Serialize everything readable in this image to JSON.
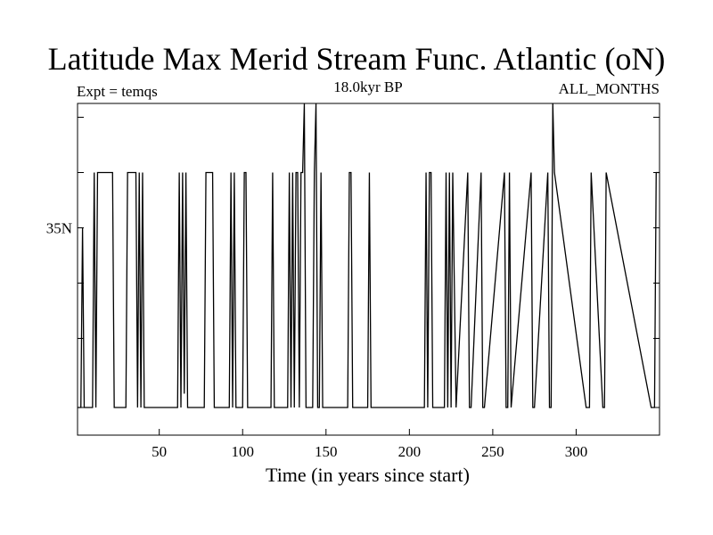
{
  "chart_data": {
    "type": "line",
    "title": "Latitude Max Merid Stream Func. Atlantic (oN)",
    "subtitle_left": "Expt = temqs",
    "subtitle_center": "18.0kyr BP",
    "subtitle_right": "ALL_MONTHS",
    "xlabel": "Time (in years since start)",
    "ylabel": "",
    "xlim": [
      1,
      350
    ],
    "ylim": [
      27.5,
      39.5
    ],
    "x_ticks": [
      50,
      100,
      150,
      200,
      250,
      300
    ],
    "x_tick_labels": [
      "50",
      "100",
      "150",
      "200",
      "250",
      "300"
    ],
    "y_ticks": [
      28.5,
      31,
      33,
      35,
      37,
      39
    ],
    "y_tick_labels": [
      "",
      "",
      "",
      "35N",
      "",
      ""
    ],
    "grid": false,
    "series": [
      {
        "color": "#000000",
        "x": [
          1,
          3,
          4,
          5,
          6,
          7,
          10,
          11,
          12,
          13,
          14,
          15,
          22,
          23,
          30,
          31,
          32,
          33,
          36,
          37,
          38,
          39,
          40,
          41,
          42,
          43,
          44,
          61,
          62,
          63,
          64,
          65,
          66,
          67,
          68,
          77,
          78,
          79,
          82,
          83,
          84,
          85,
          92,
          93,
          94,
          95,
          96,
          97,
          100,
          101,
          102,
          103,
          104,
          117,
          118,
          119,
          127,
          128,
          129,
          130,
          131,
          132,
          133,
          134,
          135,
          136,
          137,
          138,
          139,
          140,
          141,
          142,
          143,
          144,
          145,
          146,
          147,
          148,
          149,
          150,
          163,
          164,
          165,
          166,
          175,
          176,
          177,
          209,
          210,
          211,
          212,
          213,
          214,
          220,
          221,
          222,
          223,
          224,
          225,
          226,
          228,
          235,
          236,
          237,
          243,
          244,
          245,
          257,
          258,
          259,
          260,
          261,
          273,
          274,
          275,
          283,
          284,
          285,
          286,
          287,
          306,
          307,
          308,
          309,
          316,
          317,
          318,
          345,
          346,
          347,
          348,
          349,
          350
        ],
        "y": [
          28.5,
          28.5,
          35,
          28.5,
          28.5,
          28.5,
          28.5,
          37,
          28.5,
          37,
          37,
          37,
          37,
          28.5,
          28.5,
          37,
          37,
          37,
          37,
          28.5,
          37,
          28.5,
          37,
          28.5,
          28.5,
          28.5,
          28.5,
          28.5,
          37,
          28.5,
          37,
          29,
          37,
          28.5,
          28.5,
          28.5,
          37,
          37,
          37,
          28.5,
          28.5,
          28.5,
          28.5,
          37,
          28.5,
          37,
          28.5,
          28.5,
          28.5,
          37,
          37,
          28.5,
          28.5,
          28.5,
          37,
          28.5,
          28.5,
          37,
          28.5,
          37,
          28.5,
          37,
          37,
          28.5,
          37,
          37,
          39.5,
          28.5,
          28.5,
          28.5,
          28.5,
          28.5,
          37,
          39.5,
          28.5,
          28.5,
          37,
          28.5,
          28.5,
          28.5,
          28.5,
          37,
          37,
          28.5,
          28.5,
          37,
          28.5,
          28.5,
          37,
          28.5,
          37,
          37,
          28.5,
          28.5,
          28.5,
          37,
          28.5,
          37,
          28.5,
          37,
          28.5,
          37,
          28.5,
          28.5,
          37,
          28.5,
          28.5,
          37,
          28.5,
          28.5,
          37,
          28.5,
          37,
          28.5,
          28.5,
          37,
          28.5,
          28.5,
          39.5,
          37,
          28.5,
          28.5,
          28.5,
          37,
          28.5,
          28.5,
          37,
          28.5,
          28.5,
          28.5,
          37,
          37,
          37
        ]
      }
    ]
  }
}
